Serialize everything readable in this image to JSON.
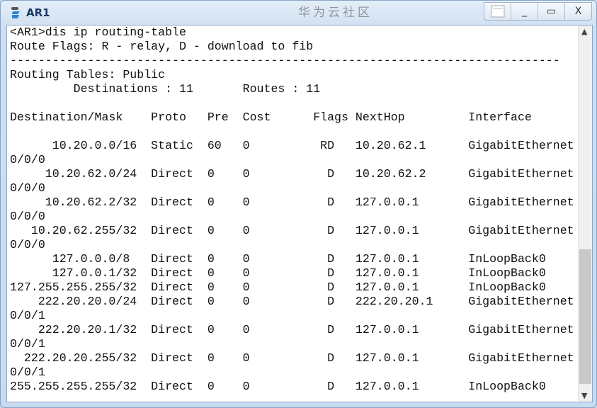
{
  "window": {
    "title": "AR1",
    "app_icon": "router-icon",
    "buttons": [
      "restore-layout-icon",
      "minimize-icon",
      "maximize-icon",
      "close-icon"
    ],
    "minimize": "_",
    "maximize": "▭",
    "close": "X"
  },
  "terminal": {
    "lines": [
      "<AR1>dis ip routing-table",
      "Route Flags: R - relay, D - download to fib",
      "------------------------------------------------------------------------------",
      "Routing Tables: Public",
      "         Destinations : 11       Routes : 11",
      "",
      "Destination/Mask    Proto   Pre  Cost      Flags NextHop         Interface",
      "",
      "      10.20.0.0/16  Static  60   0          RD   10.20.62.1      GigabitEthernet",
      "0/0/0",
      "     10.20.62.0/24  Direct  0    0           D   10.20.62.2      GigabitEthernet",
      "0/0/0",
      "     10.20.62.2/32  Direct  0    0           D   127.0.0.1       GigabitEthernet",
      "0/0/0",
      "   10.20.62.255/32  Direct  0    0           D   127.0.0.1       GigabitEthernet",
      "0/0/0",
      "      127.0.0.0/8   Direct  0    0           D   127.0.0.1       InLoopBack0",
      "      127.0.0.1/32  Direct  0    0           D   127.0.0.1       InLoopBack0",
      "127.255.255.255/32  Direct  0    0           D   127.0.0.1       InLoopBack0",
      "    222.20.20.0/24  Direct  0    0           D   222.20.20.1     GigabitEthernet",
      "0/0/1",
      "    222.20.20.1/32  Direct  0    0           D   127.0.0.1       GigabitEthernet",
      "0/0/1",
      "  222.20.20.255/32  Direct  0    0           D   127.0.0.1       GigabitEthernet",
      "0/0/1",
      "255.255.255.255/32  Direct  0    0           D   127.0.0.1       InLoopBack0"
    ]
  },
  "watermark": "华为云社区"
}
